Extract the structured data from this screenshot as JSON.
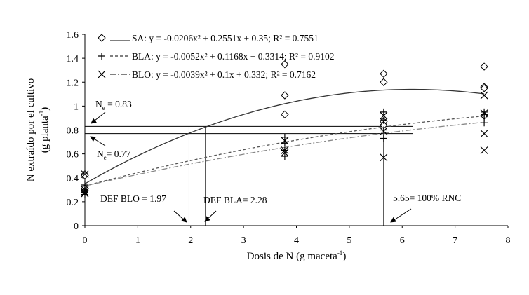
{
  "chart_data": {
    "type": "scatter",
    "xlabel": "Dosis de N (g maceta",
    "xlabel_sup": "-1",
    "xlabel_close": ")",
    "ylabel_line1": "N extraído por el cultivo",
    "ylabel_line2": "(g planta",
    "ylabel_sup": "-1",
    "ylabel_close": ")",
    "xlim": [
      0,
      8
    ],
    "ylim": [
      0,
      1.6
    ],
    "xticks": [
      0,
      1,
      2,
      3,
      4,
      5,
      6,
      7,
      8
    ],
    "yticks": [
      0,
      0.2,
      0.4,
      0.6,
      0.8,
      1,
      1.2,
      1.4,
      1.6
    ],
    "xtick_labels": [
      "0",
      "1",
      "2",
      "3",
      "4",
      "5",
      "6",
      "7",
      "8"
    ],
    "ytick_labels": [
      "0",
      "0.2",
      "0.4",
      "0.6",
      "0.8",
      "1",
      "1.2",
      "1.4",
      "1.6"
    ],
    "grid": false,
    "legend_position": "top-left",
    "series": [
      {
        "legend_text": "SA: y = -0.0206x² + 0.2551x + 0.35; R² = 0.7551",
        "marker": "diamond",
        "line_style": "solid",
        "line_color": "#333333",
        "coefficients": {
          "a": -0.0206,
          "b": 0.2551,
          "c": 0.35
        },
        "points": [
          [
            0,
            0.43
          ],
          [
            0,
            0.42
          ],
          [
            0,
            0.31
          ],
          [
            0,
            0.29
          ],
          [
            3.78,
            1.35
          ],
          [
            3.78,
            1.09
          ],
          [
            3.78,
            0.93
          ],
          [
            5.65,
            1.27
          ],
          [
            5.65,
            1.2
          ],
          [
            5.65,
            0.87
          ],
          [
            5.65,
            0.84
          ],
          [
            7.55,
            1.33
          ],
          [
            7.55,
            1.16
          ],
          [
            7.55,
            1.15
          ],
          [
            7.55,
            0.92
          ]
        ]
      },
      {
        "legend_text": "BLA: y = -0.0052x² + 0.1168x + 0.3314; R² = 0.9102",
        "marker": "plus",
        "line_style": "dash",
        "line_color": "#555555",
        "coefficients": {
          "a": -0.0052,
          "b": 0.1168,
          "c": 0.3314
        },
        "points": [
          [
            0,
            0.34
          ],
          [
            0,
            0.3
          ],
          [
            0,
            0.28
          ],
          [
            0,
            0.26
          ],
          [
            3.78,
            0.74
          ],
          [
            3.78,
            0.69
          ],
          [
            3.78,
            0.63
          ],
          [
            3.78,
            0.58
          ],
          [
            5.65,
            0.95
          ],
          [
            5.65,
            0.88
          ],
          [
            5.65,
            0.8
          ],
          [
            5.65,
            0.73
          ],
          [
            7.55,
            0.95
          ],
          [
            7.55,
            0.93
          ],
          [
            7.55,
            0.9
          ],
          [
            7.55,
            0.86
          ]
        ]
      },
      {
        "legend_text": "BLO: y = -0.0039x² + 0.1x + 0.332; R² = 0.7162",
        "marker": "x",
        "line_style": "dashdot",
        "line_color": "#888888",
        "coefficients": {
          "a": -0.0039,
          "b": 0.1,
          "c": 0.332
        },
        "points": [
          [
            0,
            0.43
          ],
          [
            0,
            0.3
          ],
          [
            0,
            0.28
          ],
          [
            0,
            0.27
          ],
          [
            3.78,
            0.71
          ],
          [
            3.78,
            0.63
          ],
          [
            3.78,
            0.61
          ],
          [
            5.65,
            0.92
          ],
          [
            5.65,
            0.87
          ],
          [
            5.65,
            0.79
          ],
          [
            5.65,
            0.57
          ],
          [
            7.55,
            1.09
          ],
          [
            7.55,
            0.94
          ],
          [
            7.55,
            0.77
          ],
          [
            7.55,
            0.63
          ]
        ]
      }
    ],
    "reference_lines": {
      "horizontal": [
        0.83,
        0.77
      ],
      "vertical": [
        1.97,
        2.28,
        5.65
      ],
      "h_xmax": 6.2
    },
    "annotations": {
      "ne_high": {
        "prefix": "N",
        "sub": "e",
        "suffix": " = 0.83"
      },
      "ne_low": {
        "prefix": "N",
        "sub": "e",
        "suffix": "= 0.77"
      },
      "def_blo": "DEF BLO = 1.97",
      "def_bla": "DEF BLA= 2.28",
      "rnc": "5.65= 100% RNC"
    }
  }
}
